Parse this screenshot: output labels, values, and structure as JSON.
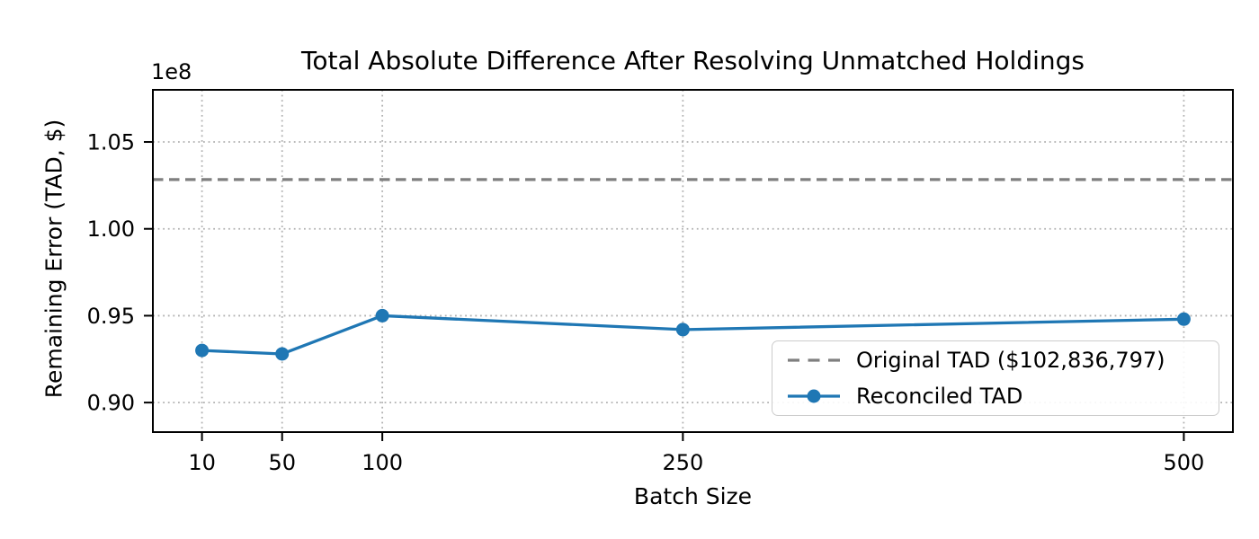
{
  "chart_data": {
    "type": "line",
    "title": "Total Absolute Difference After Resolving Unmatched Holdings",
    "xlabel": "Batch Size",
    "ylabel": "Remaining Error (TAD, $)",
    "y_axis_offset_label": "1e8",
    "x": [
      10,
      50,
      100,
      250,
      500
    ],
    "series": [
      {
        "name": "Original TAD ($102,836,797)",
        "type": "hline",
        "value": 102836797,
        "color": "#7f7f7f",
        "linestyle": "dashed"
      },
      {
        "name": "Reconciled TAD",
        "type": "line",
        "values": [
          93000000,
          92800000,
          95000000,
          94200000,
          94800000
        ],
        "color": "#1f77b4",
        "linestyle": "solid",
        "marker": "circle"
      }
    ],
    "xlim": [
      -14.5,
      524.5
    ],
    "ylim": [
      88300000,
      108000000
    ],
    "xticks": {
      "values": [
        10,
        50,
        100,
        250,
        500
      ],
      "labels": [
        "10",
        "50",
        "100",
        "250",
        "500"
      ]
    },
    "yticks": {
      "values": [
        90000000,
        95000000,
        100000000,
        105000000
      ],
      "labels": [
        "0.90",
        "0.95",
        "1.00",
        "1.05"
      ]
    },
    "grid": true,
    "grid_linestyle": "dotted",
    "legend_position": "lower right",
    "colors": {
      "grid": "#b0b0b0",
      "spine": "#000000",
      "background": "#ffffff"
    }
  }
}
